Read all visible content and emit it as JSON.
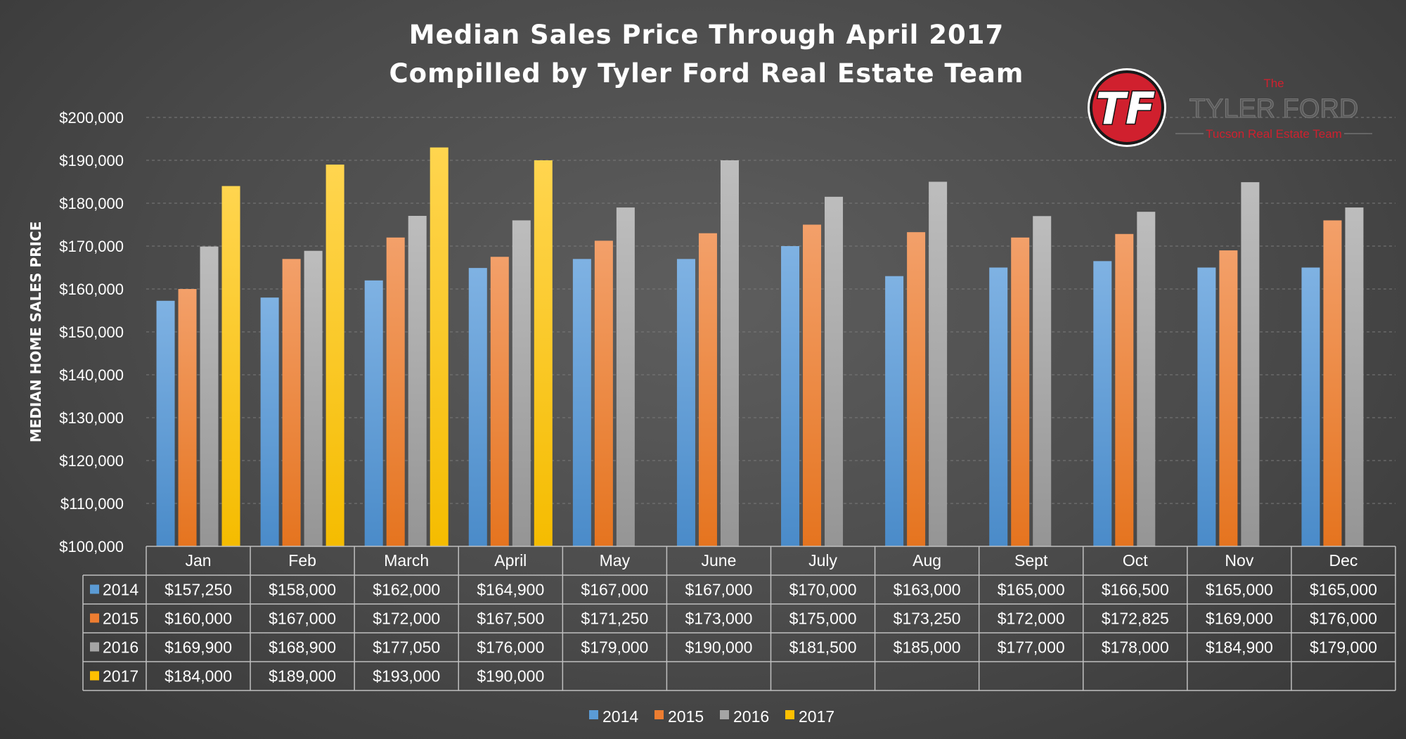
{
  "chart_data": {
    "type": "bar",
    "title": "Median Sales Price Through April 2017",
    "subtitle": "Compilled by Tyler Ford Real Estate Team",
    "ylabel": "MEDIAN HOME SALES PRICE",
    "xlabel": "",
    "ylim": [
      100000,
      200000
    ],
    "ytick_step": 10000,
    "yticks": [
      "$100,000",
      "$110,000",
      "$120,000",
      "$130,000",
      "$140,000",
      "$150,000",
      "$160,000",
      "$170,000",
      "$180,000",
      "$190,000",
      "$200,000"
    ],
    "grid": true,
    "legend_position": "bottom",
    "categories": [
      "Jan",
      "Feb",
      "March",
      "April",
      "May",
      "June",
      "July",
      "Aug",
      "Sept",
      "Oct",
      "Nov",
      "Dec"
    ],
    "series": [
      {
        "name": "2014",
        "color": "#5b9bd5",
        "values": [
          157250,
          158000,
          162000,
          164900,
          167000,
          167000,
          170000,
          163000,
          165000,
          166500,
          165000,
          165000
        ],
        "labels": [
          "$157,250",
          "$158,000",
          "$162,000",
          "$164,900",
          "$167,000",
          "$167,000",
          "$170,000",
          "$163,000",
          "$165,000",
          "$166,500",
          "$165,000",
          "$165,000"
        ]
      },
      {
        "name": "2015",
        "color": "#ed7d31",
        "values": [
          160000,
          167000,
          172000,
          167500,
          171250,
          173000,
          175000,
          173250,
          172000,
          172825,
          169000,
          176000
        ],
        "labels": [
          "$160,000",
          "$167,000",
          "$172,000",
          "$167,500",
          "$171,250",
          "$173,000",
          "$175,000",
          "$173,250",
          "$172,000",
          "$172,825",
          "$169,000",
          "$176,000"
        ]
      },
      {
        "name": "2016",
        "color": "#a5a5a5",
        "values": [
          169900,
          168900,
          177050,
          176000,
          179000,
          190000,
          181500,
          185000,
          177000,
          178000,
          184900,
          179000
        ],
        "labels": [
          "$169,900",
          "$168,900",
          "$177,050",
          "$176,000",
          "$179,000",
          "$190,000",
          "$181,500",
          "$185,000",
          "$177,000",
          "$178,000",
          "$184,900",
          "$179,000"
        ]
      },
      {
        "name": "2017",
        "color": "#ffc000",
        "values": [
          184000,
          189000,
          193000,
          190000,
          null,
          null,
          null,
          null,
          null,
          null,
          null,
          null
        ],
        "labels": [
          "$184,000",
          "$189,000",
          "$193,000",
          "$190,000",
          "",
          "",
          "",
          "",
          "",
          "",
          "",
          ""
        ]
      }
    ]
  },
  "logo": {
    "monogram": "TF",
    "the": "The",
    "name": "TYLER FORD",
    "tagline": "Tucson Real Estate Team",
    "red": "#d0202e"
  }
}
